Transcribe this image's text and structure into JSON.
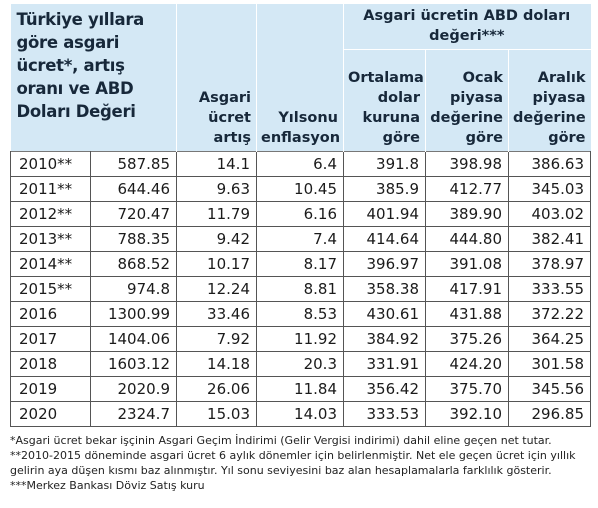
{
  "header": {
    "title": "Türkiye yıllara göre asgari ücret*, artış oranı ve ABD Doları Değeri",
    "group": "Asgari ücretin ABD doları değeri***",
    "columns": [
      "Asgari ücret artış",
      "Yılsonu enflasyon",
      "Ortalama dolar kuruna göre",
      "Ocak piyasa değerine göre",
      "Aralık piyasa değerine göre"
    ]
  },
  "table": {
    "rows": [
      [
        "2010**",
        "587.85",
        "14.1",
        "6.4",
        "391.8",
        "398.98",
        "386.63"
      ],
      [
        "2011**",
        "644.46",
        "9.63",
        "10.45",
        "385.9",
        "412.77",
        "345.03"
      ],
      [
        "2012**",
        "720.47",
        "11.79",
        "6.16",
        "401.94",
        "389.90",
        "403.02"
      ],
      [
        "2013**",
        "788.35",
        "9.42",
        "7.4",
        "414.64",
        "444.80",
        "382.41"
      ],
      [
        "2014**",
        "868.52",
        "10.17",
        "8.17",
        "396.97",
        "391.08",
        "378.97"
      ],
      [
        "2015**",
        "974.8",
        "12.24",
        "8.81",
        "358.38",
        "417.91",
        "333.55"
      ],
      [
        "2016",
        "1300.99",
        "33.46",
        "8.53",
        "430.61",
        "431.88",
        "372.22"
      ],
      [
        "2017",
        "1404.06",
        "7.92",
        "11.92",
        "384.92",
        "375.26",
        "364.25"
      ],
      [
        "2018",
        "1603.12",
        "14.18",
        "20.3",
        "331.91",
        "424.20",
        "301.58"
      ],
      [
        "2019",
        "2020.9",
        "26.06",
        "11.84",
        "356.42",
        "375.70",
        "345.56"
      ],
      [
        "2020",
        "2324.7",
        "15.03",
        "14.03",
        "333.53",
        "392.10",
        "296.85"
      ]
    ]
  },
  "footnotes": [
    "*Asgari ücret bekar işçinin Asgari Geçim İndirimi (Gelir Vergisi indirimi) dahil eline geçen net tutar.",
    "**2010-2015 döneminde asgari ücret 6 aylık dönemler için belirlenmiştir. Net ele geçen ücret için yıllık gelirin aya düşen kısmı baz alınmıştır. Yıl sonu seviyesini baz alan hesaplamalarla farklılık gösterir. ***Merkez Bankası Döviz Satış kuru"
  ]
}
